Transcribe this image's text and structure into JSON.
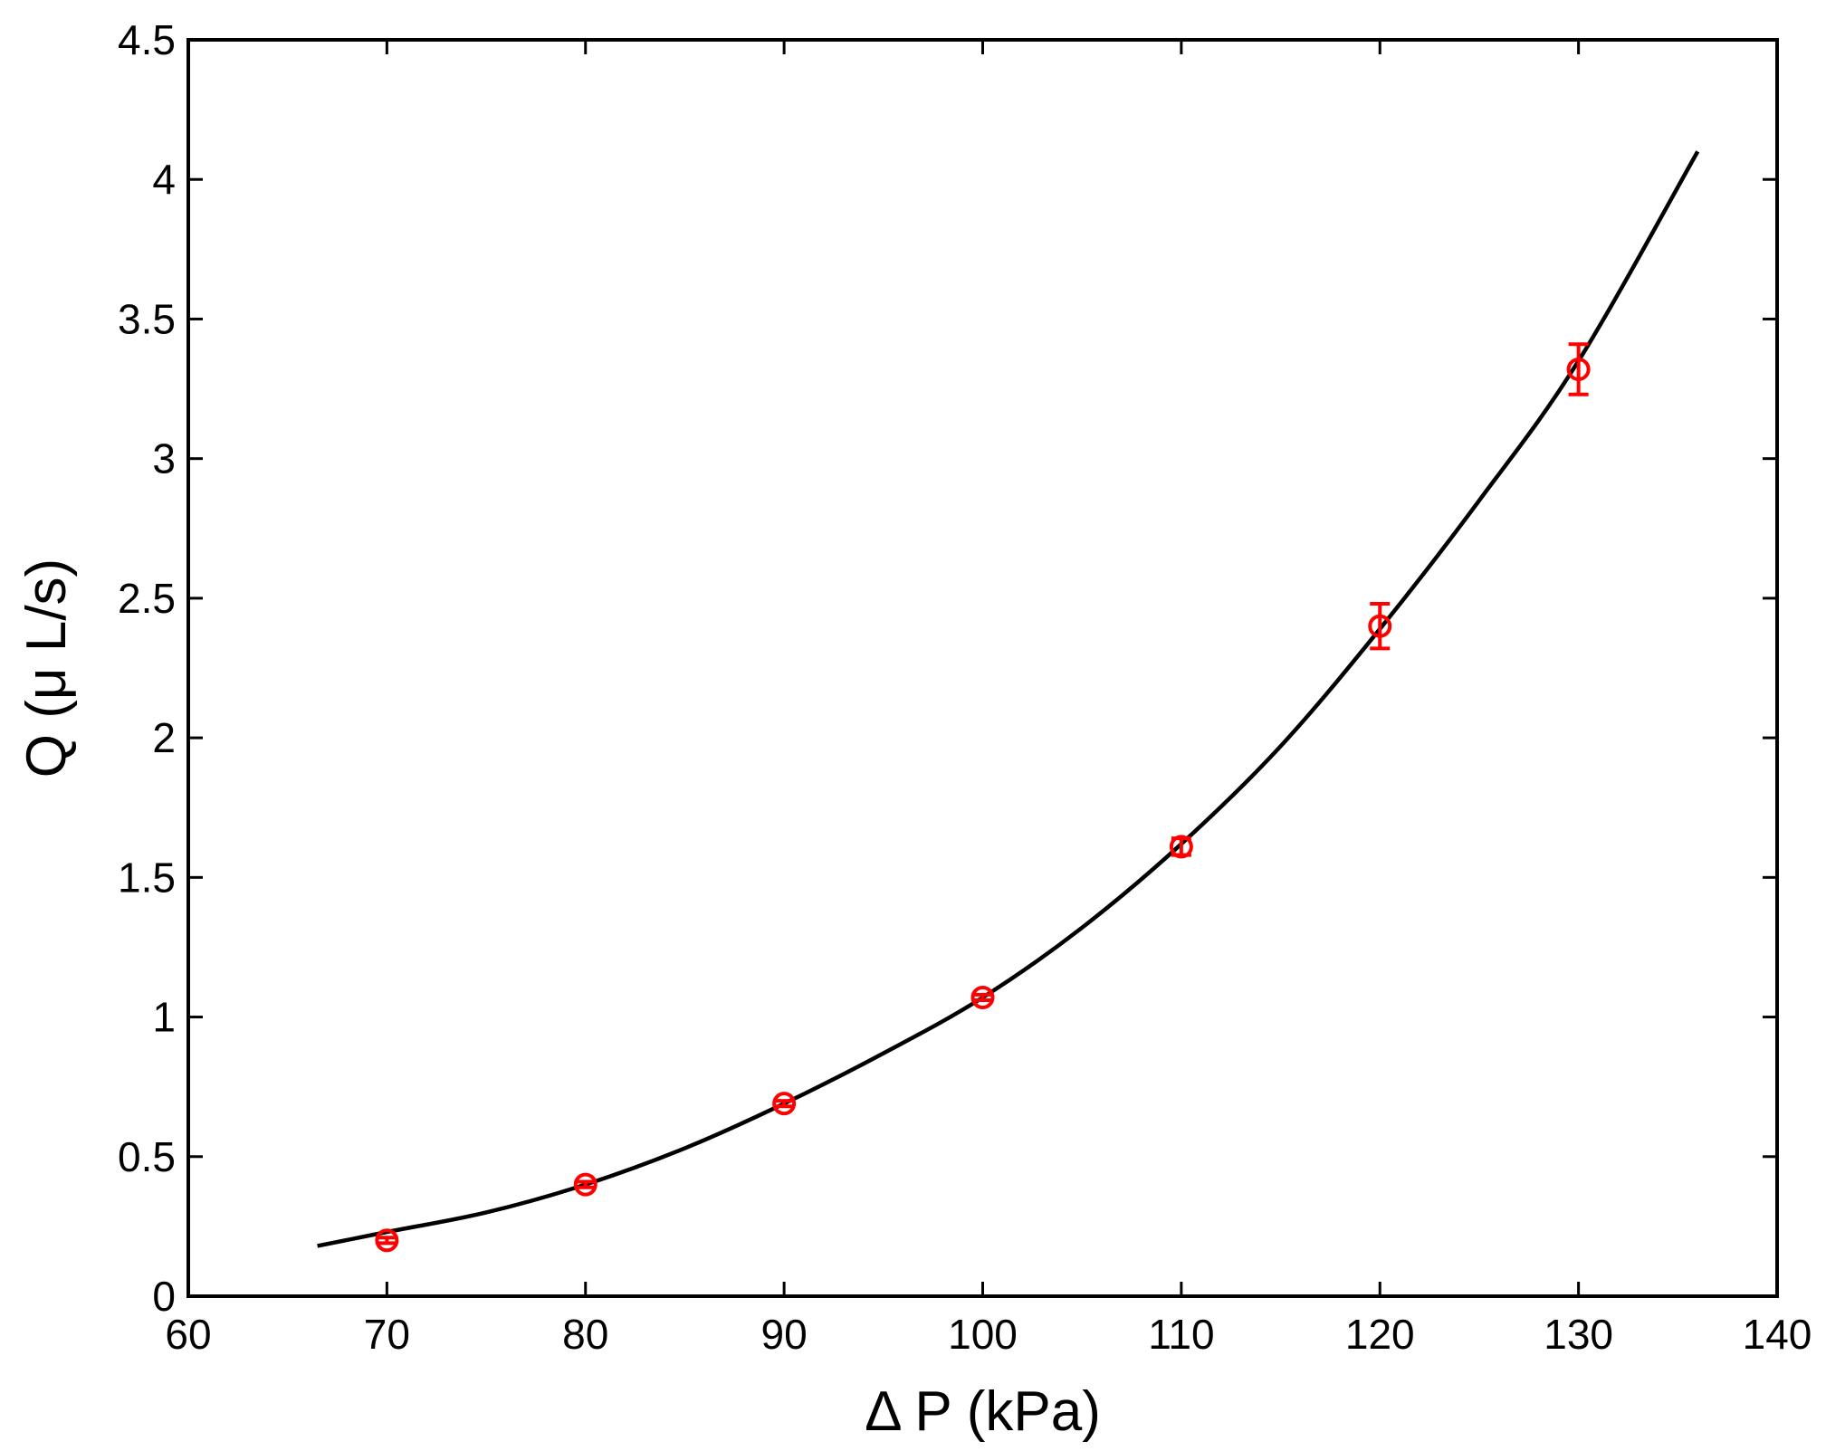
{
  "chart_data": {
    "type": "scatter",
    "xlabel": "Δ P (kPa)",
    "ylabel": "Q (μ L/s)",
    "xlim": [
      60,
      140
    ],
    "ylim": [
      0,
      4.5
    ],
    "xticks": [
      60,
      70,
      80,
      90,
      100,
      110,
      120,
      130,
      140
    ],
    "xtick_labels": [
      "60",
      "70",
      "80",
      "90",
      "100",
      "110",
      "120",
      "130",
      "140"
    ],
    "yticks": [
      0,
      0.5,
      1,
      1.5,
      2,
      2.5,
      3,
      3.5,
      4,
      4.5
    ],
    "ytick_labels": [
      "0",
      "0.5",
      "1",
      "1.5",
      "2",
      "2.5",
      "3",
      "3.5",
      "4",
      "4.5"
    ],
    "grid": false,
    "series": [
      {
        "kind": "points-with-errorbars",
        "marker": "circle",
        "color": "#ff0000",
        "x": [
          70,
          80,
          90,
          100,
          110,
          120,
          130
        ],
        "y": [
          0.2,
          0.4,
          0.69,
          1.07,
          1.61,
          2.4,
          3.32
        ],
        "yerr": [
          0.01,
          0.01,
          0.01,
          0.01,
          0.03,
          0.08,
          0.09
        ]
      },
      {
        "kind": "fit-curve",
        "color": "#000000",
        "x": [
          66.5,
          70,
          75,
          80,
          85,
          90,
          95,
          100,
          105,
          110,
          115,
          120,
          125,
          130,
          136
        ],
        "y": [
          0.18,
          0.23,
          0.3,
          0.4,
          0.53,
          0.69,
          0.87,
          1.07,
          1.32,
          1.62,
          1.97,
          2.39,
          2.85,
          3.35,
          4.1
        ]
      }
    ]
  }
}
